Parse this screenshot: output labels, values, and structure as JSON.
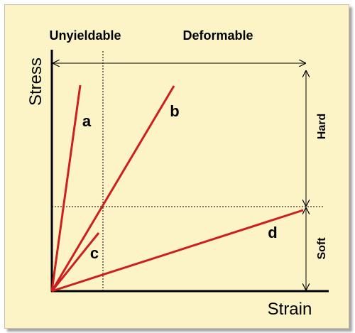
{
  "header": {
    "left_region": "Unyieldable",
    "right_region": "Deformable"
  },
  "axes": {
    "ylabel": "Stress",
    "xlabel": "Strain"
  },
  "right_axis": {
    "upper_region": "Hard",
    "lower_region": "Soft"
  },
  "lines": [
    {
      "id": "a",
      "label": "a",
      "color": "#cc1f1f"
    },
    {
      "id": "b",
      "label": "b",
      "color": "#cc1f1f"
    },
    {
      "id": "c",
      "label": "c",
      "color": "#cc1f1f"
    },
    {
      "id": "d",
      "label": "d",
      "color": "#cc1f1f"
    }
  ],
  "colors": {
    "background": "#fcf3c6",
    "line": "#cc1f1f",
    "axis": "#000000"
  }
}
